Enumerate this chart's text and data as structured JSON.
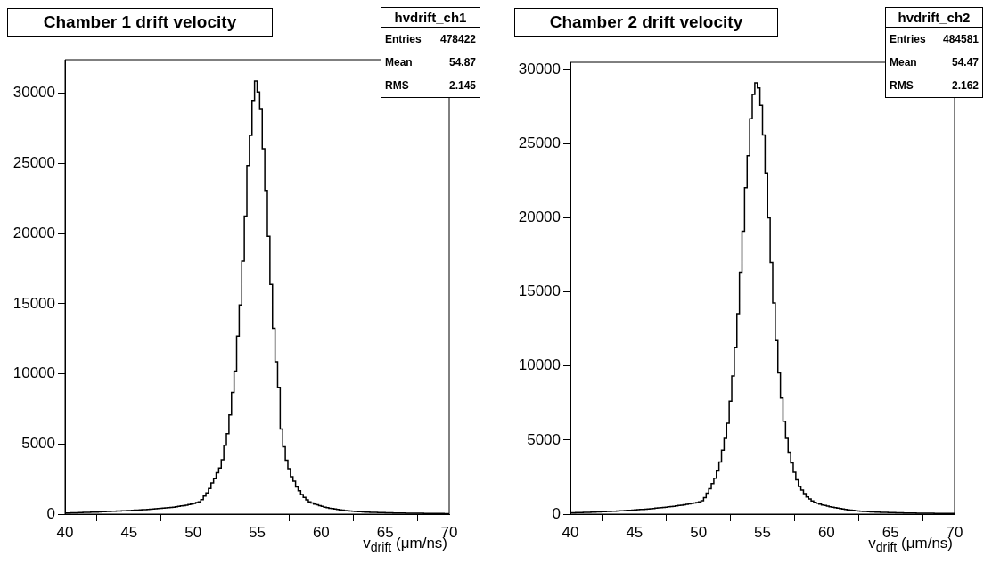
{
  "chart_data": [
    {
      "type": "histogram",
      "title": "Chamber 1 drift velocity",
      "xlabel": "v$_{drift}$ (μm/ns)",
      "color": "#000000",
      "grid": false,
      "annotations": [
        "hvdrift_ch1",
        "Entries 478422",
        "Mean 54.87",
        "RMS 2.145"
      ],
      "xlim": [
        40,
        70
      ],
      "xticks": [
        40,
        45,
        50,
        55,
        60,
        65,
        70
      ],
      "ylim": [
        0,
        32400
      ],
      "yticks": [
        0,
        5000,
        10000,
        15000,
        20000,
        25000,
        30000
      ],
      "bins": [
        40,
        40.2,
        40.4,
        40.6,
        40.8,
        41,
        41.2,
        41.4,
        41.6,
        41.8,
        42,
        42.2,
        42.4,
        42.6,
        42.8,
        43,
        43.2,
        43.4,
        43.6,
        43.8,
        44,
        44.2,
        44.4,
        44.6,
        44.8,
        45,
        45.2,
        45.4,
        45.6,
        45.8,
        46,
        46.2,
        46.4,
        46.6,
        46.8,
        47,
        47.2,
        47.4,
        47.6,
        47.8,
        48,
        48.2,
        48.4,
        48.6,
        48.8,
        49,
        49.2,
        49.4,
        49.6,
        49.8,
        50,
        50.2,
        50.4,
        50.6,
        50.8,
        51,
        51.2,
        51.4,
        51.6,
        51.8,
        52,
        52.2,
        52.4,
        52.6,
        52.8,
        53,
        53.2,
        53.4,
        53.6,
        53.8,
        54,
        54.2,
        54.4,
        54.6,
        54.8,
        55,
        55.2,
        55.4,
        55.6,
        55.8,
        56,
        56.2,
        56.4,
        56.6,
        56.8,
        57,
        57.2,
        57.4,
        57.6,
        57.8,
        58,
        58.2,
        58.4,
        58.6,
        58.8,
        59,
        59.2,
        59.4,
        59.6,
        59.8,
        60,
        60.2,
        60.4,
        60.6,
        60.8,
        61,
        61.2,
        61.4,
        61.6,
        61.8,
        62,
        62.2,
        62.4,
        62.6,
        62.8,
        63,
        63.2,
        63.4,
        63.6,
        63.8,
        64,
        64.2,
        64.4,
        64.6,
        64.8,
        65,
        65.2,
        65.4,
        65.6,
        65.8,
        66,
        66.2,
        66.4,
        66.6,
        66.8,
        67,
        67.2,
        67.4,
        67.6,
        67.8,
        68,
        68.2,
        68.4,
        68.6,
        68.8,
        69,
        69.2,
        69.4,
        69.6,
        69.8,
        70
      ],
      "values": [
        80,
        85,
        90,
        95,
        100,
        110,
        115,
        120,
        125,
        130,
        140,
        145,
        150,
        160,
        170,
        180,
        185,
        195,
        200,
        210,
        220,
        225,
        235,
        240,
        250,
        260,
        270,
        280,
        290,
        300,
        310,
        325,
        340,
        350,
        365,
        380,
        395,
        410,
        425,
        440,
        460,
        480,
        500,
        525,
        550,
        580,
        610,
        640,
        680,
        720,
        760,
        820,
        870,
        1040,
        1290,
        1510,
        1820,
        2230,
        2520,
        2950,
        3290,
        3880,
        4900,
        5740,
        7060,
        8670,
        10190,
        12690,
        14920,
        18050,
        21250,
        24850,
        27000,
        29500,
        30870,
        30100,
        28900,
        26050,
        23080,
        19800,
        16380,
        13240,
        10870,
        9030,
        6060,
        4790,
        3840,
        3240,
        2670,
        2350,
        1930,
        1670,
        1400,
        1190,
        1020,
        870,
        790,
        720,
        660,
        600,
        550,
        500,
        460,
        420,
        390,
        360,
        330,
        300,
        280,
        260,
        240,
        220,
        205,
        190,
        180,
        170,
        160,
        150,
        140,
        130,
        125,
        120,
        115,
        110,
        105,
        100,
        95,
        90,
        85,
        80,
        78,
        75,
        72,
        70,
        68,
        65,
        62,
        60,
        58,
        56,
        54,
        52,
        50,
        48,
        46,
        44,
        42,
        40,
        38,
        36
      ]
    },
    {
      "type": "histogram",
      "title": "Chamber 2 drift velocity",
      "xlabel": "v$_{drift}$ (μm/ns)",
      "color": "#000000",
      "grid": false,
      "annotations": [
        "hvdrift_ch2",
        "Entries 484581",
        "Mean 54.47",
        "RMS 2.162"
      ],
      "xlim": [
        40,
        70
      ],
      "xticks": [
        40,
        45,
        50,
        55,
        60,
        65,
        70
      ],
      "ylim": [
        0,
        30500
      ],
      "yticks": [
        0,
        5000,
        10000,
        15000,
        20000,
        25000,
        30000
      ],
      "bins": [
        40,
        40.2,
        40.4,
        40.6,
        40.8,
        41,
        41.2,
        41.4,
        41.6,
        41.8,
        42,
        42.2,
        42.4,
        42.6,
        42.8,
        43,
        43.2,
        43.4,
        43.6,
        43.8,
        44,
        44.2,
        44.4,
        44.6,
        44.8,
        45,
        45.2,
        45.4,
        45.6,
        45.8,
        46,
        46.2,
        46.4,
        46.6,
        46.8,
        47,
        47.2,
        47.4,
        47.6,
        47.8,
        48,
        48.2,
        48.4,
        48.6,
        48.8,
        49,
        49.2,
        49.4,
        49.6,
        49.8,
        50,
        50.2,
        50.4,
        50.6,
        50.8,
        51,
        51.2,
        51.4,
        51.6,
        51.8,
        52,
        52.2,
        52.4,
        52.6,
        52.8,
        53,
        53.2,
        53.4,
        53.6,
        53.8,
        54,
        54.2,
        54.4,
        54.6,
        54.8,
        55,
        55.2,
        55.4,
        55.6,
        55.8,
        56,
        56.2,
        56.4,
        56.6,
        56.8,
        57,
        57.2,
        57.4,
        57.6,
        57.8,
        58,
        58.2,
        58.4,
        58.6,
        58.8,
        59,
        59.2,
        59.4,
        59.6,
        59.8,
        60,
        60.2,
        60.4,
        60.6,
        60.8,
        61,
        61.2,
        61.4,
        61.6,
        61.8,
        62,
        62.2,
        62.4,
        62.6,
        62.8,
        63,
        63.2,
        63.4,
        63.6,
        63.8,
        64,
        64.2,
        64.4,
        64.6,
        64.8,
        65,
        65.2,
        65.4,
        65.6,
        65.8,
        66,
        66.2,
        66.4,
        66.6,
        66.8,
        67,
        67.2,
        67.4,
        67.6,
        67.8,
        68,
        68.2,
        68.4,
        68.6,
        68.8,
        69,
        69.2,
        69.4,
        69.6,
        69.8,
        70
      ],
      "values": [
        90,
        95,
        100,
        105,
        110,
        115,
        120,
        125,
        130,
        140,
        145,
        150,
        160,
        165,
        175,
        180,
        190,
        200,
        210,
        220,
        230,
        240,
        250,
        260,
        270,
        280,
        295,
        310,
        320,
        335,
        350,
        365,
        380,
        400,
        415,
        430,
        450,
        470,
        490,
        510,
        530,
        555,
        580,
        605,
        630,
        660,
        690,
        720,
        750,
        780,
        820,
        900,
        1120,
        1420,
        1720,
        2060,
        2420,
        2920,
        3520,
        4320,
        5120,
        6130,
        7630,
        9330,
        11230,
        13530,
        16330,
        19100,
        22030,
        24200,
        26700,
        28330,
        29110,
        28770,
        27600,
        25600,
        23020,
        20000,
        17000,
        14260,
        11710,
        9540,
        7840,
        6270,
        5120,
        4180,
        3460,
        2820,
        2320,
        1860,
        1620,
        1380,
        1160,
        1020,
        880,
        800,
        730,
        670,
        620,
        580,
        540,
        500,
        460,
        430,
        400,
        370,
        340,
        310,
        290,
        270,
        250,
        230,
        215,
        200,
        185,
        175,
        165,
        155,
        145,
        135,
        130,
        125,
        120,
        115,
        110,
        105,
        100,
        95,
        90,
        85,
        80,
        78,
        75,
        72,
        70,
        67,
        64,
        62,
        60,
        58,
        56,
        54,
        52,
        50,
        48,
        46,
        44,
        42,
        40,
        38
      ]
    }
  ]
}
